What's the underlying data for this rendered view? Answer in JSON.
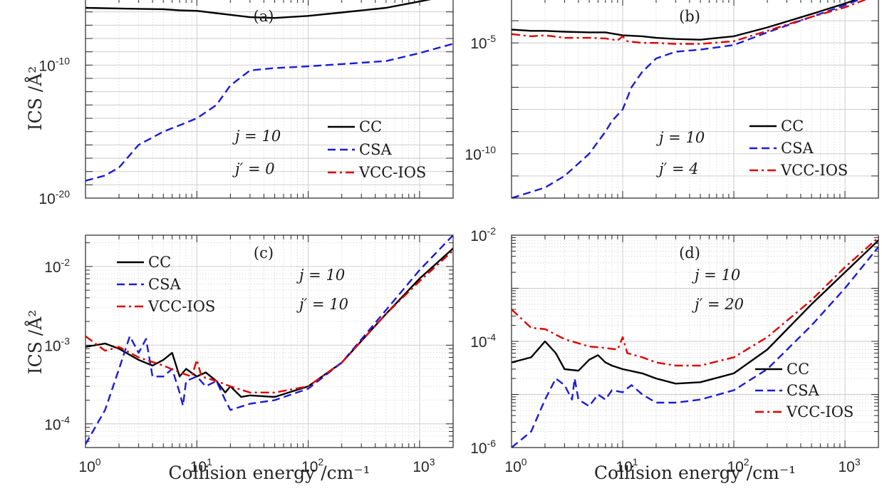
{
  "chart_data": [
    {
      "type": "line",
      "panel": "(a)",
      "xlabel": "",
      "ylabel": "ICS /Å²",
      "xscale": "log",
      "yscale": "log",
      "xlim": [
        1,
        2000
      ],
      "ylim": [
        1e-20,
        1e-05
      ],
      "x_ticks": [],
      "y_ticks": [
        1e-20,
        1e-10
      ],
      "y_tick_labels": [
        {
          "base": "10",
          "exp": "-20"
        },
        {
          "base": "10",
          "exp": "-10"
        }
      ],
      "grid": true,
      "legend_position": "right-center",
      "annotations": [
        "j = 10",
        "j′ = 0"
      ],
      "series": [
        {
          "name": "CC",
          "color": "#000000",
          "dash": "solid",
          "x": [
            1,
            2,
            3,
            5,
            7,
            10,
            15,
            20,
            30,
            50,
            100,
            200,
            500,
            1000,
            2000
          ],
          "y": [
            2e-06,
            1.8e-06,
            1.7e-06,
            1.6e-06,
            1.3e-06,
            1.2e-06,
            8e-07,
            6e-07,
            4e-07,
            3.5e-07,
            5e-07,
            9e-07,
            2e-06,
            6e-06,
            2e-05
          ]
        },
        {
          "name": "CSA",
          "color": "#1a1adc",
          "dash": "dashed",
          "x": [
            1,
            1.5,
            2,
            3,
            5,
            7,
            10,
            15,
            20,
            30,
            50,
            100,
            200,
            500,
            1000,
            2000
          ],
          "y": [
            2e-19,
            5e-19,
            2e-18,
            1e-16,
            1e-15,
            3e-15,
            1e-14,
            1e-13,
            3e-12,
            4e-11,
            6e-11,
            8e-11,
            1.2e-10,
            2e-10,
            8e-10,
            4e-09
          ]
        },
        {
          "name": "VCC-IOS",
          "color": "#e00000",
          "dash": "dashdot",
          "x": [],
          "y": []
        }
      ]
    },
    {
      "type": "line",
      "panel": "(b)",
      "xlabel": "",
      "ylabel": "",
      "xscale": "log",
      "yscale": "log",
      "xlim": [
        1,
        2000
      ],
      "ylim": [
        1e-12,
        0.001
      ],
      "x_ticks": [],
      "y_ticks": [
        1e-10,
        1e-05
      ],
      "y_tick_labels": [
        {
          "base": "10",
          "exp": "-10"
        },
        {
          "base": "10",
          "exp": "-5"
        }
      ],
      "grid": true,
      "legend_position": "right-center",
      "annotations": [
        "j = 10",
        "j′ = 4"
      ],
      "series": [
        {
          "name": "CC",
          "color": "#000000",
          "dash": "solid",
          "x": [
            1,
            1.5,
            2,
            3,
            5,
            7,
            10,
            15,
            20,
            30,
            50,
            100,
            200,
            500,
            1000,
            2000
          ],
          "y": [
            4e-05,
            3.5e-05,
            3.5e-05,
            3.2e-05,
            3e-05,
            3e-05,
            2.2e-05,
            2e-05,
            1.7e-05,
            1.5e-05,
            1.4e-05,
            2e-05,
            5e-05,
            0.0002,
            0.0006,
            0.002
          ]
        },
        {
          "name": "CSA",
          "color": "#1a1adc",
          "dash": "dashed",
          "x": [
            1,
            2,
            3,
            5,
            7,
            8,
            10,
            12,
            15,
            20,
            30,
            50,
            100,
            200,
            500,
            1000,
            2000
          ],
          "y": [
            1e-12,
            3e-12,
            1e-11,
            1e-10,
            1e-09,
            3e-09,
            1e-08,
            1e-07,
            5e-07,
            2e-06,
            4e-06,
            5e-06,
            8e-06,
            3e-05,
            0.00015,
            0.0005,
            0.002
          ]
        },
        {
          "name": "VCC-IOS",
          "color": "#e00000",
          "dash": "dashdot",
          "x": [
            1,
            1.5,
            2,
            3,
            5,
            7,
            9,
            10,
            11,
            15,
            20,
            30,
            50,
            100,
            200,
            500,
            1000,
            2000
          ],
          "y": [
            2.5e-05,
            2e-05,
            2.2e-05,
            1.7e-05,
            1.7e-05,
            1.6e-05,
            1.3e-05,
            2e-05,
            1.2e-05,
            1e-05,
            1e-05,
            9e-06,
            9e-06,
            1.2e-05,
            3.5e-05,
            0.00015,
            0.0004,
            0.0015
          ]
        }
      ]
    },
    {
      "type": "line",
      "panel": "(c)",
      "xlabel": "Collision energy /cm⁻¹",
      "ylabel": "ICS /Å²",
      "xscale": "log",
      "yscale": "log",
      "xlim": [
        1,
        2000
      ],
      "ylim": [
        5e-05,
        0.025
      ],
      "x_ticks": [
        1,
        10,
        100,
        1000
      ],
      "x_tick_labels": [
        {
          "base": "10",
          "exp": "0"
        },
        {
          "base": "10",
          "exp": "1"
        },
        {
          "base": "10",
          "exp": "2"
        },
        {
          "base": "10",
          "exp": "3"
        }
      ],
      "y_ticks": [
        0.0001,
        0.001,
        0.01
      ],
      "y_tick_labels": [
        {
          "base": "10",
          "exp": "-4"
        },
        {
          "base": "10",
          "exp": "-3"
        },
        {
          "base": "10",
          "exp": "-2"
        }
      ],
      "grid": true,
      "legend_position": "top-left",
      "annotations": [
        "j = 10",
        "j′ = 10"
      ],
      "series": [
        {
          "name": "CC",
          "color": "#000000",
          "dash": "solid",
          "x": [
            1,
            1.5,
            2,
            3,
            4,
            5,
            6,
            7,
            8,
            10,
            12,
            15,
            18,
            20,
            25,
            30,
            50,
            100,
            200,
            500,
            1000,
            2000
          ],
          "y": [
            0.00095,
            0.00105,
            0.0009,
            0.00065,
            0.00055,
            0.00065,
            0.0008,
            0.0004,
            0.0005,
            0.0004,
            0.00045,
            0.00035,
            0.00025,
            0.0003,
            0.00022,
            0.00023,
            0.00022,
            0.0003,
            0.0006,
            0.0025,
            0.007,
            0.017
          ]
        },
        {
          "name": "CSA",
          "color": "#1a1adc",
          "dash": "dashed",
          "x": [
            1,
            1.5,
            2,
            2.5,
            3,
            3.5,
            4,
            5,
            6,
            7,
            7.5,
            8,
            10,
            12,
            15,
            18,
            20,
            30,
            50,
            100,
            200,
            500,
            1000,
            2000
          ],
          "y": [
            5.5e-05,
            0.00015,
            0.0005,
            0.0013,
            0.0008,
            0.0012,
            0.0004,
            0.0004,
            0.0005,
            0.00025,
            0.00017,
            0.00035,
            0.0004,
            0.0003,
            0.00035,
            0.0002,
            0.00015,
            0.00018,
            0.0002,
            0.00028,
            0.0006,
            0.0028,
            0.009,
            0.025
          ]
        },
        {
          "name": "VCC-IOS",
          "color": "#e00000",
          "dash": "dashdot",
          "x": [
            1,
            1.5,
            2,
            3,
            5,
            7,
            9,
            10,
            11,
            15,
            20,
            30,
            50,
            100,
            200,
            500,
            1000,
            2000
          ],
          "y": [
            0.0013,
            0.00085,
            0.00095,
            0.0007,
            0.00055,
            0.00045,
            0.0004,
            0.00065,
            0.0004,
            0.00035,
            0.0003,
            0.00025,
            0.00025,
            0.0003,
            0.0006,
            0.0025,
            0.0065,
            0.016
          ]
        }
      ]
    },
    {
      "type": "line",
      "panel": "(d)",
      "xlabel": "Collision energy /cm⁻¹",
      "ylabel": "",
      "xscale": "log",
      "yscale": "log",
      "xlim": [
        1,
        2000
      ],
      "ylim": [
        1e-06,
        0.01
      ],
      "x_ticks": [
        1,
        10,
        100,
        1000
      ],
      "x_tick_labels": [
        {
          "base": "10",
          "exp": "0"
        },
        {
          "base": "10",
          "exp": "1"
        },
        {
          "base": "10",
          "exp": "2"
        },
        {
          "base": "10",
          "exp": "3"
        }
      ],
      "y_ticks": [
        1e-06,
        0.0001,
        0.01
      ],
      "y_tick_labels": [
        {
          "base": "10",
          "exp": "-6"
        },
        {
          "base": "10",
          "exp": "-4"
        },
        {
          "base": "10",
          "exp": "-2"
        }
      ],
      "grid": true,
      "legend_position": "bottom-right",
      "annotations": [
        "j = 10",
        "j′ = 20"
      ],
      "series": [
        {
          "name": "CC",
          "color": "#000000",
          "dash": "solid",
          "x": [
            1,
            1.5,
            2,
            2.5,
            3,
            4,
            5,
            6,
            7,
            8,
            10,
            15,
            20,
            30,
            50,
            100,
            200,
            500,
            1000,
            2000
          ],
          "y": [
            4e-05,
            5e-05,
            0.0001,
            6e-05,
            3e-05,
            2.8e-05,
            4.5e-05,
            5.5e-05,
            4e-05,
            3.5e-05,
            3e-05,
            2.5e-05,
            2e-05,
            1.6e-05,
            1.7e-05,
            2.5e-05,
            7e-05,
            0.0005,
            0.002,
            0.008
          ]
        },
        {
          "name": "CSA",
          "color": "#1a1adc",
          "dash": "dashed",
          "x": [
            1,
            1.5,
            2,
            2.5,
            3,
            3.5,
            3.7,
            4,
            5,
            6,
            7,
            8,
            10,
            12,
            15,
            20,
            30,
            50,
            100,
            200,
            500,
            1000,
            2000
          ],
          "y": [
            1e-06,
            2e-06,
            8e-06,
            2e-05,
            1.5e-05,
            8e-06,
            2e-05,
            8e-06,
            6e-06,
            1e-05,
            8e-06,
            1.2e-05,
            1.1e-05,
            1.5e-05,
            1e-05,
            7e-06,
            7e-06,
            8e-06,
            1.2e-05,
            3e-05,
            0.0002,
            0.001,
            0.006
          ]
        },
        {
          "name": "VCC-IOS",
          "color": "#e00000",
          "dash": "dashdot",
          "x": [
            1,
            1.5,
            2,
            3,
            5,
            7,
            9,
            10,
            11,
            15,
            20,
            30,
            50,
            100,
            200,
            500,
            1000,
            2000
          ],
          "y": [
            0.0004,
            0.00018,
            0.00017,
            0.00011,
            8e-05,
            7.5e-05,
            7e-05,
            0.00012,
            6e-05,
            5e-05,
            4e-05,
            3.5e-05,
            3.5e-05,
            5e-05,
            0.00012,
            0.0006,
            0.0025,
            0.009
          ]
        }
      ]
    }
  ]
}
